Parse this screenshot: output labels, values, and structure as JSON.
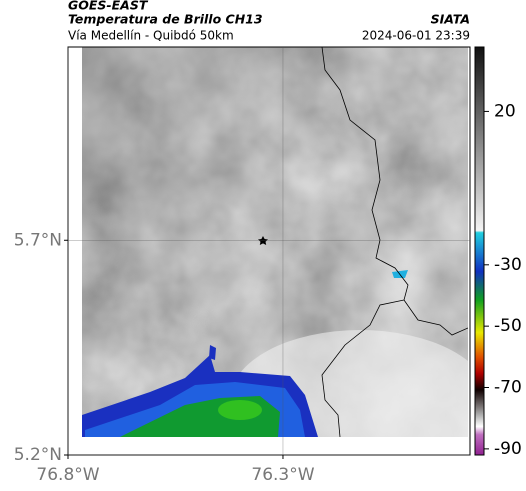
{
  "header": {
    "satellite": "GOES-EAST",
    "product": "Temperatura de Brillo CH13",
    "source": "SIATA",
    "route": "Vía Medellín - Quibdó 50km",
    "timestamp": "2024-06-01 23:39"
  },
  "map": {
    "xlim": [
      -76.8,
      -75.865
    ],
    "ylim": [
      5.2,
      6.15
    ],
    "xticks": [
      {
        "value": -76.8,
        "label": "76.8°W"
      },
      {
        "value": -76.3,
        "label": "76.3°W"
      }
    ],
    "yticks": [
      {
        "value": 5.2,
        "label": "5.2°N"
      },
      {
        "value": 5.7,
        "label": "5.7°N"
      }
    ],
    "grid": true
  },
  "colorbar": {
    "lim": [
      -92,
      41
    ],
    "ticks": [
      20,
      -30,
      -50,
      -70,
      -90
    ]
  }
}
